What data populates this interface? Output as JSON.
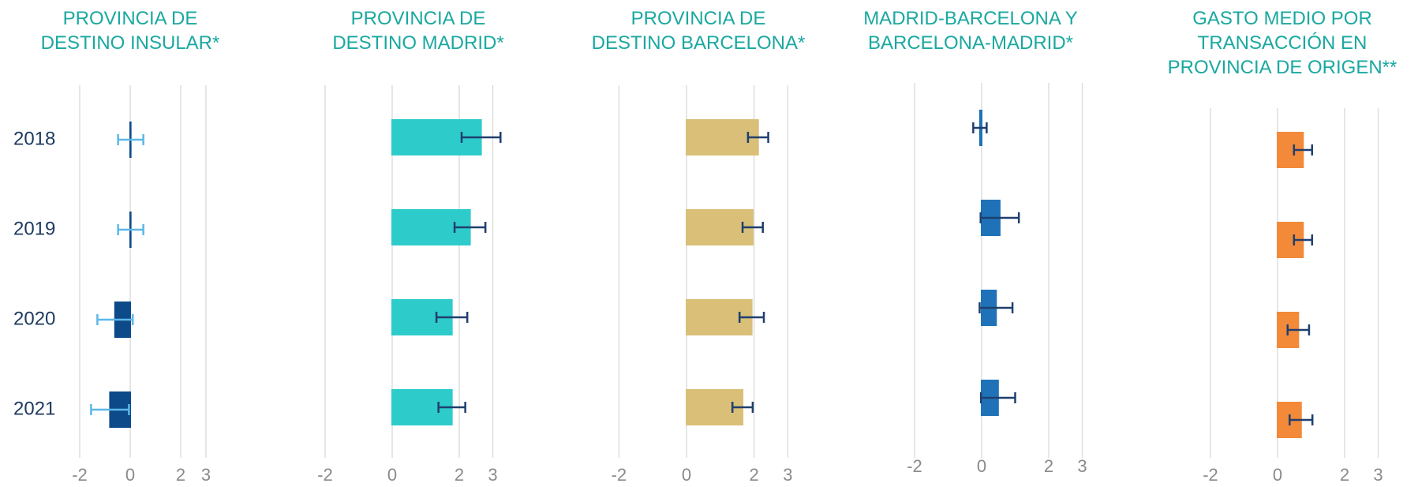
{
  "chart_data": [
    {
      "type": "bar",
      "title": "PROVINCIA DE\nDESTINO INSULAR*",
      "categories": [
        "2018",
        "2019",
        "2020",
        "2021"
      ],
      "values": [
        0.02,
        0.02,
        -0.6,
        -0.8
      ],
      "errors": [
        0.5,
        0.5,
        0.7,
        0.75
      ],
      "color": "#0d4a8a",
      "error_color": "#5bb8e8",
      "xlim": [
        -2,
        4
      ],
      "xticks": [
        -2,
        0,
        2,
        3
      ],
      "grid": true
    },
    {
      "type": "bar",
      "title": "PROVINCIA DE\nDESTINO MADRID*",
      "values": [
        2.65,
        2.32,
        1.78,
        1.78
      ],
      "errors": [
        0.58,
        0.46,
        0.46,
        0.4
      ],
      "color": "#2ecbcb",
      "error_color": "#1f3f6e",
      "xlim": [
        -2,
        4
      ],
      "xticks": [
        -2,
        0,
        2,
        3
      ],
      "grid": true
    },
    {
      "type": "bar",
      "title": "PROVINCIA DE\nDESTINO BARCELONA*",
      "values": [
        2.12,
        1.96,
        1.93,
        1.66
      ],
      "errors": [
        0.3,
        0.3,
        0.36,
        0.3
      ],
      "color": "#d9bf78",
      "error_color": "#1f3f6e",
      "xlim": [
        -2,
        4
      ],
      "xticks": [
        -2,
        0,
        2,
        3
      ],
      "grid": true
    },
    {
      "type": "bar",
      "title": "MADRID-BARCELONA Y\nBARCELONA-MADRID*",
      "values": [
        -0.05,
        0.54,
        0.43,
        0.49
      ],
      "errors": [
        0.2,
        0.57,
        0.49,
        0.51
      ],
      "color": "#1f72b8",
      "error_color": "#1f3f6e",
      "xlim": [
        -2,
        4
      ],
      "xticks": [
        -2,
        0,
        2,
        3
      ],
      "grid": true
    },
    {
      "type": "bar",
      "title": "GASTO MEDIO POR\nTRANSACCIÓN EN\nPROVINCIA DE ORIGEN**",
      "values": [
        0.76,
        0.76,
        0.62,
        0.7
      ],
      "errors": [
        0.27,
        0.27,
        0.32,
        0.34
      ],
      "color": "#f28a3a",
      "error_color": "#1f3f6e",
      "xlim": [
        -2,
        4
      ],
      "xticks": [
        -2,
        0,
        2,
        3
      ],
      "grid": true
    }
  ]
}
